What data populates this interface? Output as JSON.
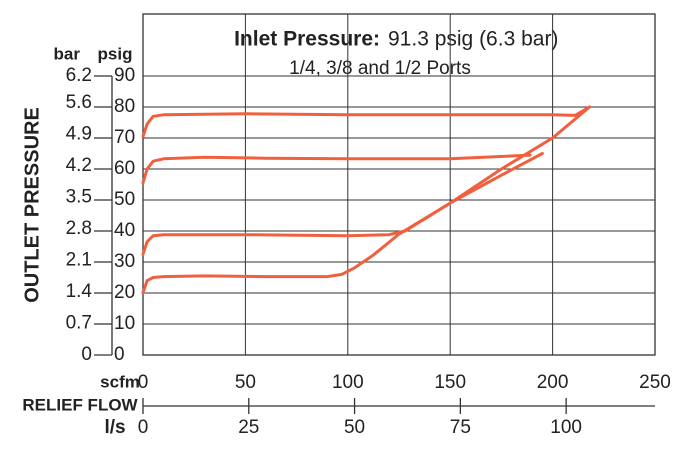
{
  "chart_data": {
    "type": "line",
    "title": "Inlet Pressure:",
    "title_value": "91.3 psig (6.3 bar)",
    "subtitle": "1/4, 3/8 and 1/2 Ports",
    "ylabel": "OUTLET PRESSURE",
    "y_unit": "psig",
    "y2_unit": "bar",
    "x_unit": "scfm",
    "xlabel": "RELIEF FLOW",
    "x2_unit": "l/s",
    "xlim": [
      0,
      250
    ],
    "xticks": [
      0,
      50,
      100,
      150,
      200,
      250
    ],
    "x2lim": [
      0,
      121
    ],
    "x2ticks": [
      0,
      25,
      50,
      75,
      100
    ],
    "ylim": [
      0,
      110
    ],
    "yticks": [
      0,
      10,
      20,
      30,
      40,
      50,
      60,
      70,
      80,
      90
    ],
    "y2lim": [
      0,
      7.58
    ],
    "y2ticks": [
      0,
      0.7,
      1.4,
      2.1,
      2.8,
      3.5,
      4.2,
      4.9,
      5.6,
      6.2
    ],
    "grid": true,
    "series": [
      {
        "color": "#f0603f",
        "x": [
          0,
          2,
          5,
          10,
          30,
          60,
          90,
          97,
          103,
          112,
          125,
          150,
          175,
          200,
          218
        ],
        "values": [
          20.1,
          24,
          25,
          25.3,
          25.5,
          25.3,
          25.3,
          26,
          28,
          32,
          39,
          49,
          60,
          70,
          80
        ]
      },
      {
        "color": "#f0603f",
        "x": [
          0,
          2,
          5,
          10,
          50,
          100,
          120,
          128,
          150,
          175,
          195
        ],
        "values": [
          32.5,
          36.5,
          38.5,
          38.8,
          38.8,
          38.5,
          38.8,
          40,
          49,
          58,
          65
        ]
      },
      {
        "color": "#f0603f",
        "x": [
          0,
          2,
          5,
          10,
          30,
          60,
          100,
          150,
          189
        ],
        "values": [
          55.5,
          60,
          62.5,
          63.3,
          63.8,
          63.5,
          63.3,
          63.3,
          64.5
        ]
      },
      {
        "color": "#f0603f",
        "x": [
          0,
          2,
          5,
          10,
          50,
          100,
          150,
          200,
          211,
          218
        ],
        "values": [
          70.5,
          74.5,
          77,
          77.5,
          77.8,
          77.5,
          77.5,
          77.5,
          77.3,
          80
        ]
      }
    ]
  }
}
